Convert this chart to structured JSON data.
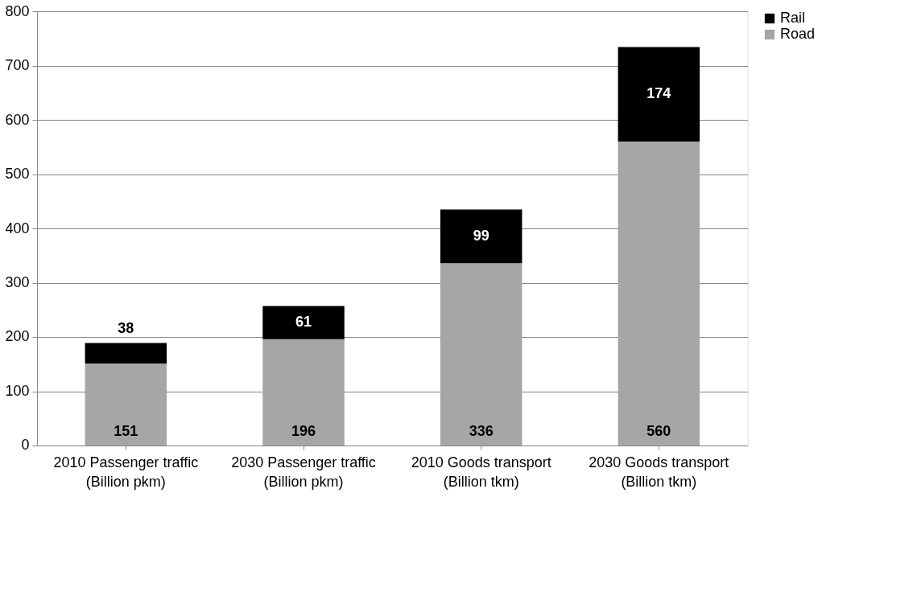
{
  "chart_data": {
    "type": "bar",
    "stacked": true,
    "categories": [
      "2010 Passenger traffic (Billion pkm)",
      "2030 Passenger traffic (Billion pkm)",
      "2010 Goods transport (Billion tkm)",
      "2030 Goods transport (Billion tkm)"
    ],
    "series": [
      {
        "name": "Road",
        "color": "#a6a6a6",
        "values": [
          151,
          196,
          336,
          560
        ]
      },
      {
        "name": "Rail",
        "color": "#000000",
        "values": [
          38,
          61,
          99,
          174
        ]
      }
    ],
    "ylim": [
      0,
      800
    ],
    "yticks": [
      0,
      100,
      200,
      300,
      400,
      500,
      600,
      700,
      800
    ],
    "grid": "y",
    "legend": "right",
    "data_labels": true
  }
}
